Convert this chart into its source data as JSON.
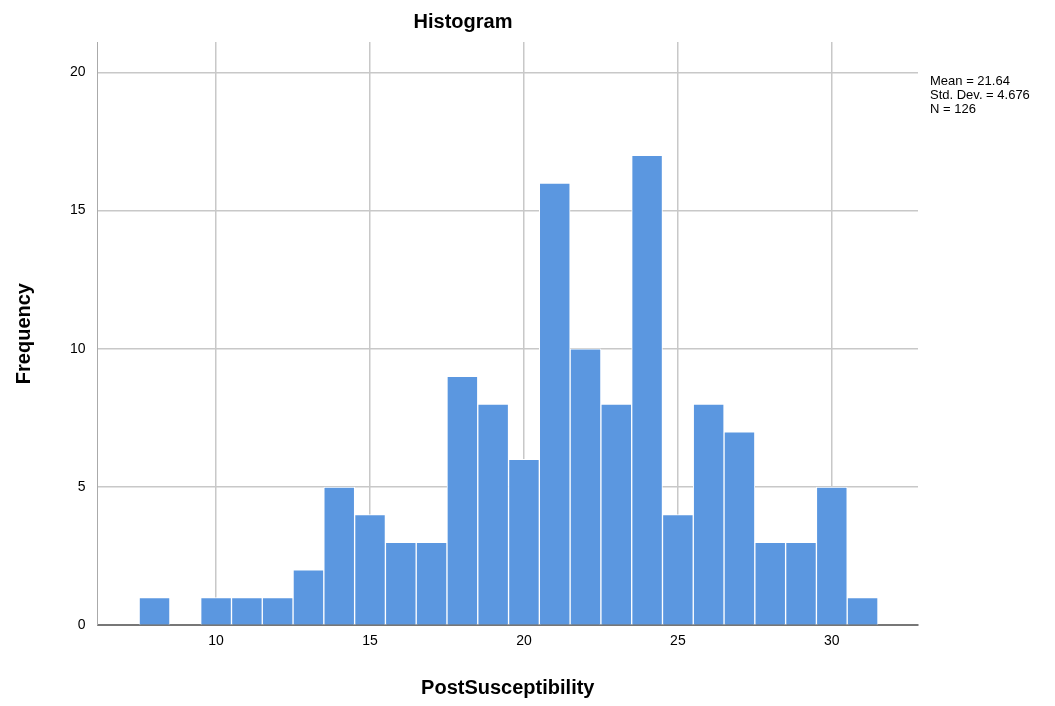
{
  "chart_data": {
    "type": "histogram",
    "title": "Histogram",
    "xlabel": "PostSusceptibility",
    "ylabel": "Frequency",
    "bins": [
      7.5,
      8.5,
      9.5,
      10.5,
      11.5,
      12.5,
      13.5,
      14.5,
      15.5,
      16.5,
      17.5,
      18.5,
      19.5,
      20.5,
      21.5,
      22.5,
      23.5,
      24.5,
      25.5,
      26.5,
      27.5,
      28.5,
      29.5,
      30.5,
      31.5
    ],
    "values": [
      1,
      0,
      1,
      1,
      1,
      2,
      5,
      4,
      3,
      3,
      9,
      8,
      6,
      16,
      10,
      8,
      17,
      4,
      8,
      7,
      3,
      3,
      5,
      1
    ],
    "color": "#5b97e0",
    "xlim": [
      6.15,
      32.8
    ],
    "xticks": [
      10,
      15,
      20,
      25,
      30
    ],
    "ylim": [
      0,
      21.1
    ],
    "yticks": [
      0,
      5,
      10,
      15,
      20
    ],
    "grid": true,
    "legend": false,
    "annotations": [
      "Mean = 21.64",
      "Std. Dev. = 4.676",
      "N = 126"
    ]
  }
}
